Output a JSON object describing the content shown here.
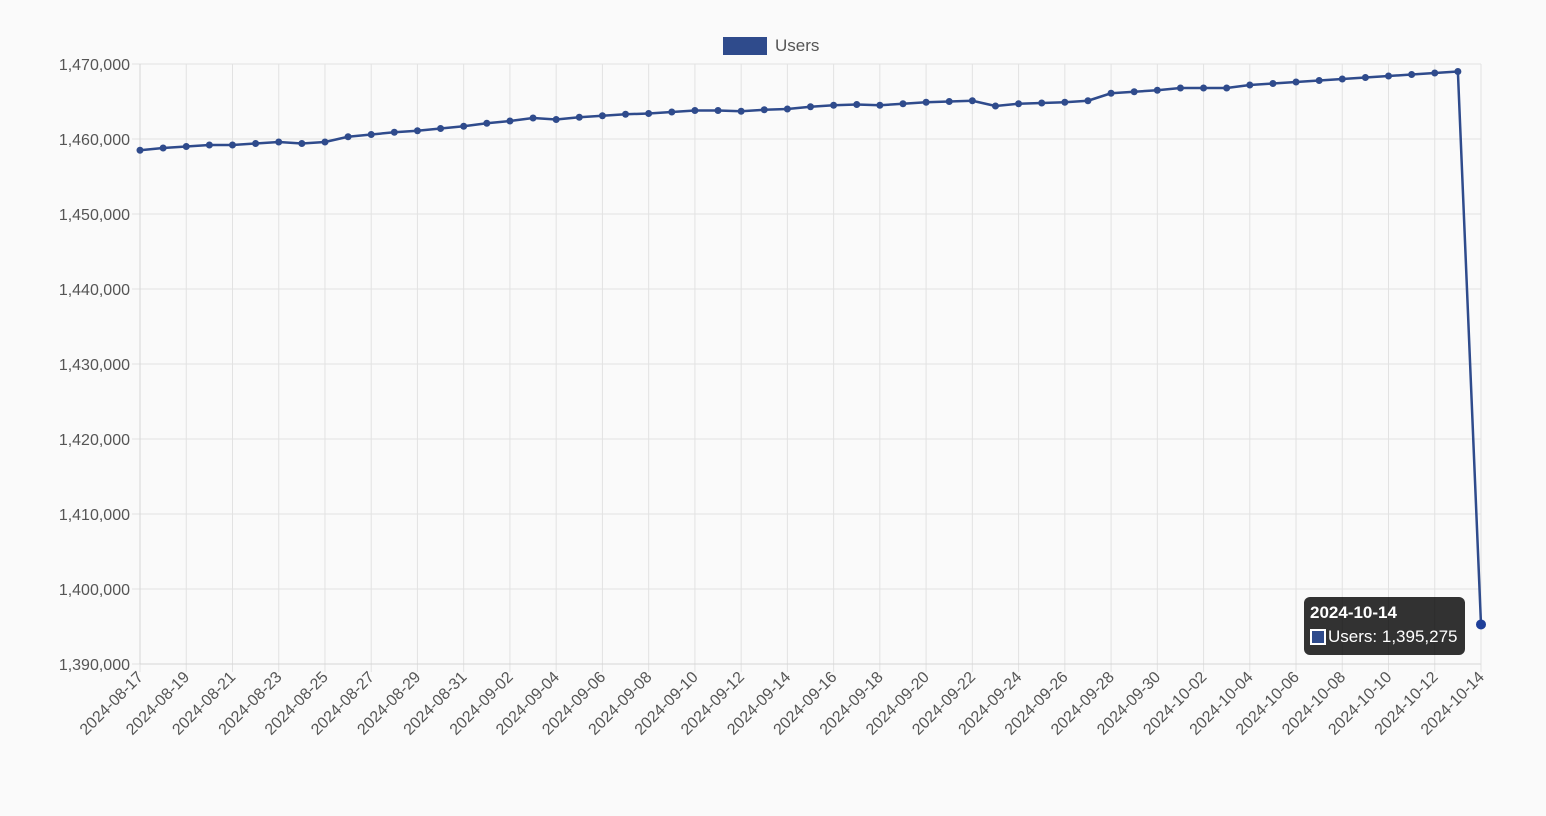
{
  "legend": {
    "label": "Users",
    "color": "#2f4b8c"
  },
  "tooltip": {
    "title": "2024-10-14",
    "series_label": "Users",
    "value_text": "1,395,275"
  },
  "chart_data": {
    "type": "line",
    "ylim": [
      1390000,
      1470000
    ],
    "yticks": [
      "1,390,000",
      "1,400,000",
      "1,410,000",
      "1,420,000",
      "1,430,000",
      "1,440,000",
      "1,450,000",
      "1,460,000",
      "1,470,000"
    ],
    "ytick_values": [
      1390000,
      1400000,
      1410000,
      1420000,
      1430000,
      1440000,
      1450000,
      1460000,
      1470000
    ],
    "x": [
      "2024-08-17",
      "2024-08-18",
      "2024-08-19",
      "2024-08-20",
      "2024-08-21",
      "2024-08-22",
      "2024-08-23",
      "2024-08-24",
      "2024-08-25",
      "2024-08-26",
      "2024-08-27",
      "2024-08-28",
      "2024-08-29",
      "2024-08-30",
      "2024-08-31",
      "2024-09-01",
      "2024-09-02",
      "2024-09-03",
      "2024-09-04",
      "2024-09-05",
      "2024-09-06",
      "2024-09-07",
      "2024-09-08",
      "2024-09-09",
      "2024-09-10",
      "2024-09-11",
      "2024-09-12",
      "2024-09-13",
      "2024-09-14",
      "2024-09-15",
      "2024-09-16",
      "2024-09-17",
      "2024-09-18",
      "2024-09-19",
      "2024-09-20",
      "2024-09-21",
      "2024-09-22",
      "2024-09-23",
      "2024-09-24",
      "2024-09-25",
      "2024-09-26",
      "2024-09-27",
      "2024-09-28",
      "2024-09-29",
      "2024-09-30",
      "2024-10-01",
      "2024-10-02",
      "2024-10-03",
      "2024-10-04",
      "2024-10-05",
      "2024-10-06",
      "2024-10-07",
      "2024-10-08",
      "2024-10-09",
      "2024-10-10",
      "2024-10-11",
      "2024-10-12",
      "2024-10-13",
      "2024-10-14"
    ],
    "xtick_labels": [
      "2024-08-17",
      "2024-08-19",
      "2024-08-21",
      "2024-08-23",
      "2024-08-25",
      "2024-08-27",
      "2024-08-29",
      "2024-08-31",
      "2024-09-02",
      "2024-09-04",
      "2024-09-06",
      "2024-09-08",
      "2024-09-10",
      "2024-09-12",
      "2024-09-14",
      "2024-09-16",
      "2024-09-18",
      "2024-09-20",
      "2024-09-22",
      "2024-09-24",
      "2024-09-26",
      "2024-09-28",
      "2024-09-30",
      "2024-10-02",
      "2024-10-04",
      "2024-10-06",
      "2024-10-08",
      "2024-10-10",
      "2024-10-12",
      "2024-10-14"
    ],
    "series": [
      {
        "name": "Users",
        "color": "#2f4b8c",
        "values": [
          1458500,
          1458800,
          1459000,
          1459200,
          1459200,
          1459400,
          1459600,
          1459400,
          1459600,
          1460300,
          1460600,
          1460900,
          1461100,
          1461400,
          1461700,
          1462100,
          1462400,
          1462800,
          1462600,
          1462900,
          1463100,
          1463300,
          1463400,
          1463600,
          1463800,
          1463800,
          1463700,
          1463900,
          1464000,
          1464300,
          1464500,
          1464600,
          1464500,
          1464700,
          1464900,
          1465000,
          1465100,
          1464400,
          1464700,
          1464800,
          1464900,
          1465100,
          1466100,
          1466300,
          1466500,
          1466800,
          1466800,
          1466800,
          1467200,
          1467400,
          1467600,
          1467800,
          1468000,
          1468200,
          1468400,
          1468600,
          1468800,
          1469000,
          1395275
        ]
      }
    ],
    "grid": true,
    "legend_position": "top-center"
  }
}
